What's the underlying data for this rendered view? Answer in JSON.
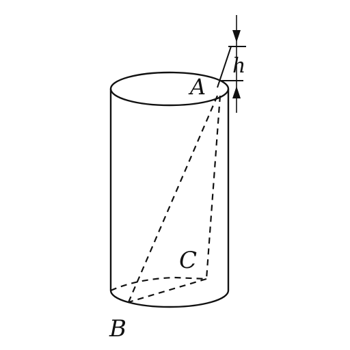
{
  "diagram": {
    "labels": {
      "a": "A",
      "b": "B",
      "c": "C",
      "h": "h"
    },
    "colors": {
      "ink": "#111111",
      "background": "#ffffff"
    }
  }
}
